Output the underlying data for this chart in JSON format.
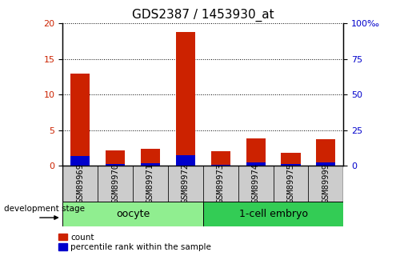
{
  "title": "GDS2387 / 1453930_at",
  "samples": [
    "GSM89969",
    "GSM89970",
    "GSM89971",
    "GSM89972",
    "GSM89973",
    "GSM89974",
    "GSM89975",
    "GSM89999"
  ],
  "count_values": [
    13.0,
    2.1,
    2.4,
    18.8,
    2.0,
    3.8,
    1.8,
    3.7
  ],
  "percentile_values": [
    6.8,
    1.0,
    1.5,
    7.5,
    0.4,
    2.3,
    1.2,
    2.0
  ],
  "groups": [
    {
      "label": "oocyte",
      "start": 0,
      "end": 4,
      "color": "#90EE90"
    },
    {
      "label": "1-cell embryo",
      "start": 4,
      "end": 8,
      "color": "#33CC55"
    }
  ],
  "left_ylim": [
    0,
    20
  ],
  "right_ylim": [
    0,
    100
  ],
  "left_yticks": [
    0,
    5,
    10,
    15,
    20
  ],
  "right_yticks": [
    0,
    25,
    50,
    75,
    100
  ],
  "right_yticklabels": [
    "0",
    "25",
    "50",
    "75",
    "100‰"
  ],
  "bar_color_red": "#CC2200",
  "bar_color_blue": "#0000CC",
  "grid_color": "black",
  "tick_bg_color": "#CCCCCC",
  "oocyte_color": "#AAEEBB",
  "embryo_color": "#44CC66",
  "bar_width": 0.55,
  "title_fontsize": 11,
  "tick_fontsize": 8,
  "label_fontsize": 9
}
